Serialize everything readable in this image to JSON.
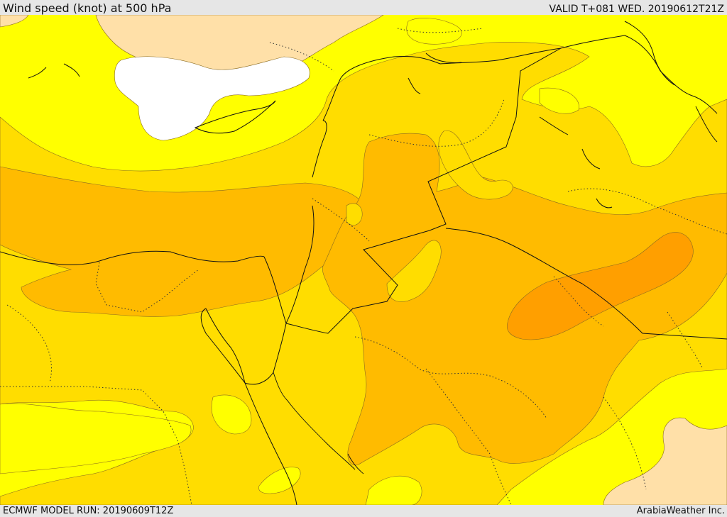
{
  "header": {
    "title": "Wind speed (knot) at 500 hPa",
    "valid_time": "VALID T+081 WED. 20190612T21Z"
  },
  "footer": {
    "model_run": "ECMWF MODEL RUN: 20190609T12Z",
    "credit": "ArabiaWeather Inc."
  },
  "colors": {
    "calm": "#ffffff",
    "pale": "#ffe0a8",
    "yellow": "#ffff00",
    "gold": "#ffdd00",
    "amber": "#ffbb00",
    "orange": "#ff9f00",
    "contour": "#8a6a20",
    "border": "#111111"
  }
}
